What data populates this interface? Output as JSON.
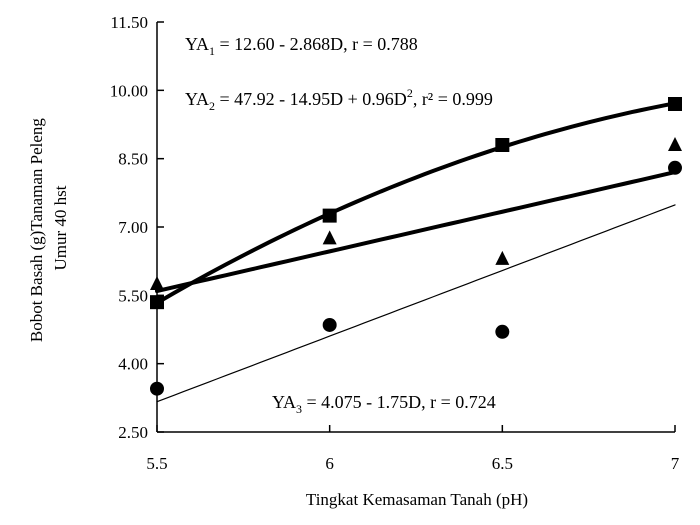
{
  "chart_data": {
    "type": "scatter",
    "xlabel": "Tingkat Kemasaman Tanah (pH)",
    "ylabel": [
      "Bobot Basah  (g)Tanaman Peleng",
      "Umur 40 hst"
    ],
    "xlim": [
      5.5,
      7
    ],
    "ylim": [
      2.5,
      11.5
    ],
    "x_ticks": [
      "5.5",
      "6",
      "6.5",
      "7"
    ],
    "y_ticks": [
      "2.50",
      "4.00",
      "5.50",
      "7.00",
      "8.50",
      "10.00",
      "11.50"
    ],
    "grid": false,
    "equations": [
      {
        "prefix": "YA",
        "sub": "1",
        "body": " = 12.60 - 2.868D, r = 0.788"
      },
      {
        "prefix": "YA",
        "sub": "2",
        "mid": " = 47.92 - 14.95D + 0.96D",
        "sup": "2",
        "tail": ", r² = 0.999"
      },
      {
        "prefix": "YA",
        "sub": "3",
        "body": " = 4.075 - 1.75D, r = 0.724"
      }
    ],
    "series": [
      {
        "marker": "square",
        "x": [
          5.5,
          6.0,
          6.5,
          7.0
        ],
        "y": [
          5.35,
          7.25,
          8.8,
          9.7
        ],
        "fit": "quadratic",
        "fit_width": 4
      },
      {
        "marker": "triangle",
        "x": [
          5.5,
          6.0,
          6.5,
          7.0
        ],
        "y": [
          5.75,
          6.75,
          6.3,
          8.8
        ],
        "fit": "linear",
        "fit_width": 4
      },
      {
        "marker": "circle",
        "x": [
          5.5,
          6.0,
          6.5,
          7.0
        ],
        "y": [
          3.45,
          4.85,
          4.7,
          8.3
        ],
        "fit": "linear",
        "fit_width": 1.2
      }
    ]
  }
}
